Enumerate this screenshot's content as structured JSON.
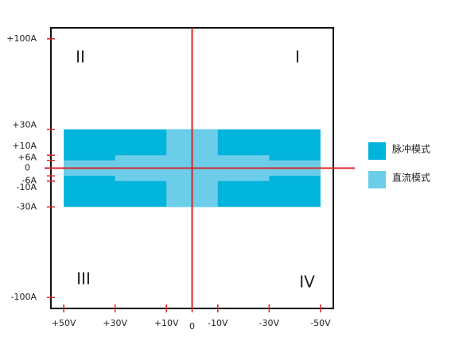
{
  "chart_data": {
    "type": "region",
    "xlim": [
      55,
      -55
    ],
    "ylim": [
      -108.5,
      108.5
    ],
    "xticks": [
      {
        "value": 50,
        "label": "+50V"
      },
      {
        "value": 30,
        "label": "+30V"
      },
      {
        "value": 10,
        "label": "+10V"
      },
      0,
      {
        "value": -10,
        "label": "-10V"
      },
      {
        "value": -30,
        "label": "-30V"
      },
      {
        "value": -50,
        "label": "-50V"
      }
    ],
    "yticks": [
      {
        "value": 100,
        "label": "+100A"
      },
      {
        "value": 30,
        "label": "+30A"
      },
      {
        "value": 10,
        "label": "+10A"
      },
      {
        "value": 6,
        "label": "+6A"
      },
      0,
      {
        "value": -6,
        "label": "-6A"
      },
      {
        "value": -10,
        "label": "-10A"
      },
      {
        "value": -30,
        "label": "-30A"
      },
      {
        "value": -100,
        "label": "-100A"
      }
    ],
    "axis_color": "#d9262b",
    "series": [
      {
        "name": "脉冲模式",
        "color": "#00b4dc",
        "rects": [
          {
            "x": [
              50,
              -50
            ],
            "y": [
              -30,
              30
            ]
          }
        ]
      },
      {
        "name": "直流模式",
        "color": "#6ccde8",
        "rects": [
          {
            "x": [
              50,
              -50
            ],
            "y": [
              -6,
              6
            ]
          },
          {
            "x": [
              30,
              -30
            ],
            "y": [
              -10,
              10
            ]
          },
          {
            "x": [
              10,
              -10
            ],
            "y": [
              -30,
              30
            ]
          }
        ]
      }
    ]
  },
  "quadrants": [
    "I",
    "II",
    "III",
    "IV"
  ]
}
